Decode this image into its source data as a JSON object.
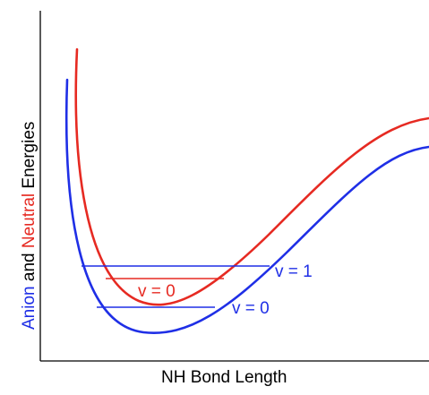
{
  "axes": {
    "x_label": "NH Bond Length",
    "y_label": {
      "part1": "Anion",
      "part2": " and ",
      "part3": "Neutral",
      "part4": " Energies"
    }
  },
  "curves": [
    {
      "name": "Anion",
      "color": "#1f2fe6"
    },
    {
      "name": "Neutral",
      "color": "#e62a22"
    }
  ],
  "levels": {
    "anion_v0": "v = 0",
    "anion_v1": "v = 1",
    "neutral_v0": "v = 0"
  },
  "colors": {
    "anion": "#1f2fe6",
    "neutral": "#e62a22",
    "axis": "#000000"
  }
}
